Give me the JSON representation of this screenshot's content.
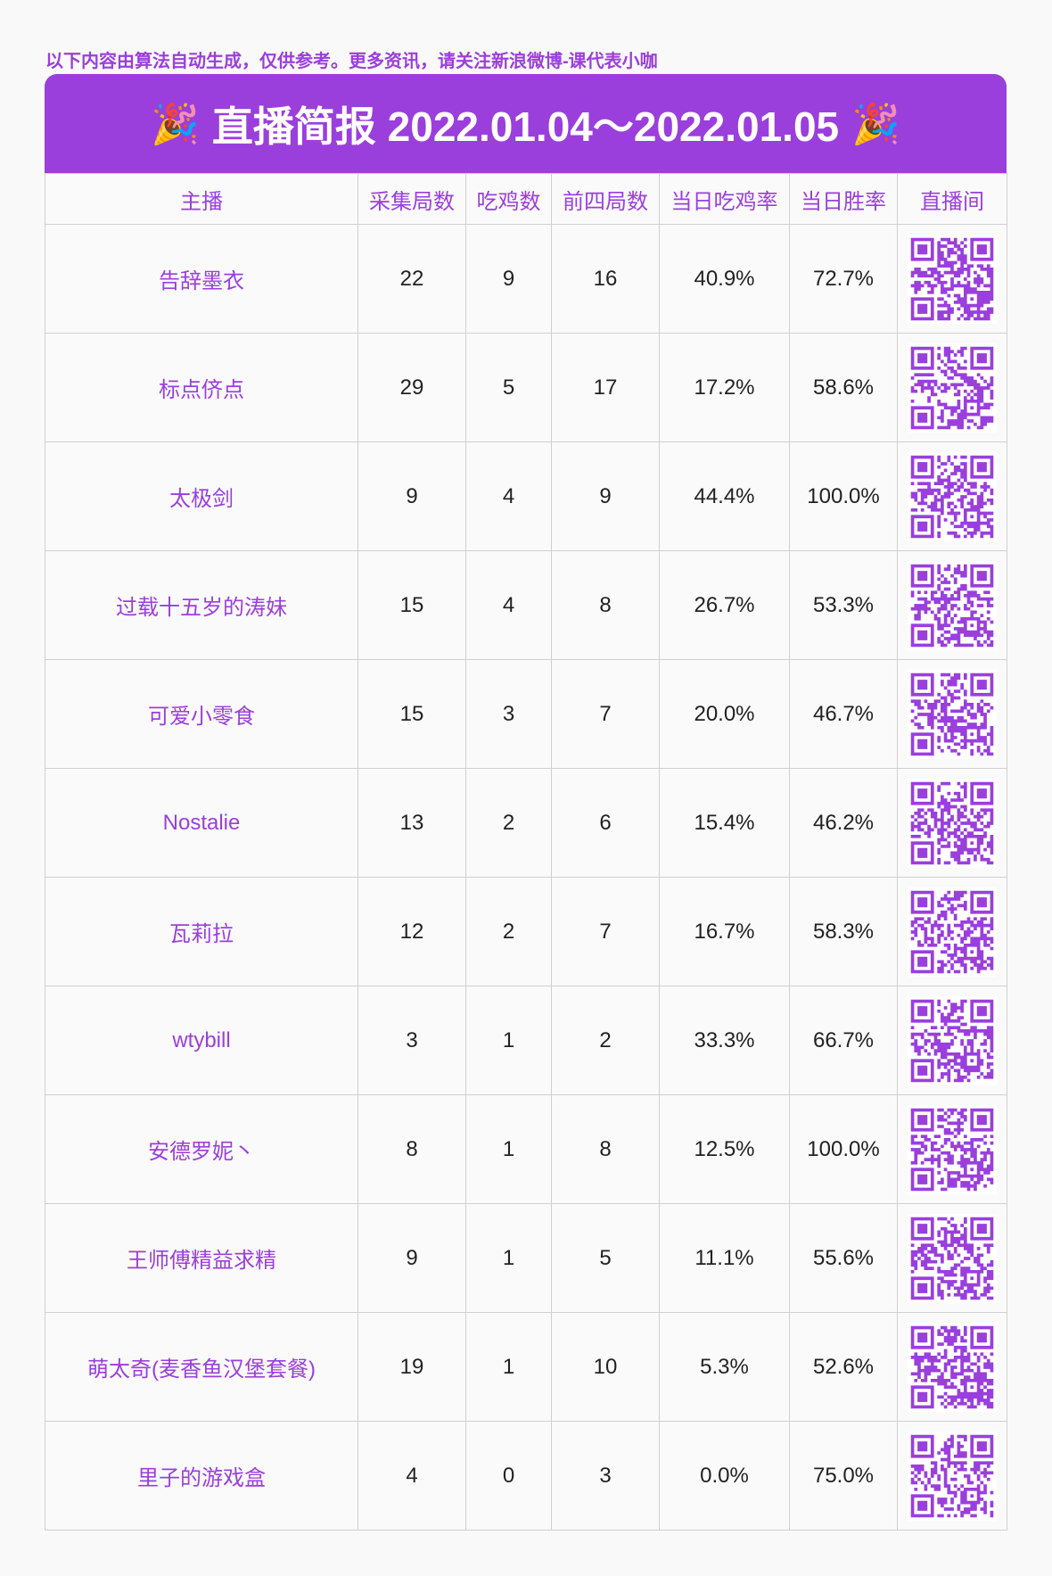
{
  "notice": "以下内容由算法自动生成，仅供参考。更多资讯，请关注新浪微博-课代表小咖",
  "banner": {
    "title": "直播简报 2022.01.04～2022.01.05",
    "left_icon": "party-popper-icon",
    "right_icon": "party-popper-icon",
    "emoji": "🎉"
  },
  "accent_color": "#9a3fdc",
  "columns": [
    "主播",
    "采集局数",
    "吃鸡数",
    "前四局数",
    "当日吃鸡率",
    "当日胜率",
    "直播间"
  ],
  "rows": [
    {
      "name": "告辞墨衣",
      "games": "22",
      "wins": "9",
      "top4": "16",
      "win_rate": "40.9%",
      "day_rate": "72.7%"
    },
    {
      "name": "标点侪点",
      "games": "29",
      "wins": "5",
      "top4": "17",
      "win_rate": "17.2%",
      "day_rate": "58.6%"
    },
    {
      "name": "太极剑",
      "games": "9",
      "wins": "4",
      "top4": "9",
      "win_rate": "44.4%",
      "day_rate": "100.0%"
    },
    {
      "name": "过载十五岁的涛妹",
      "games": "15",
      "wins": "4",
      "top4": "8",
      "win_rate": "26.7%",
      "day_rate": "53.3%"
    },
    {
      "name": "可爱小零食",
      "games": "15",
      "wins": "3",
      "top4": "7",
      "win_rate": "20.0%",
      "day_rate": "46.7%"
    },
    {
      "name": "Nostalie",
      "games": "13",
      "wins": "2",
      "top4": "6",
      "win_rate": "15.4%",
      "day_rate": "46.2%"
    },
    {
      "name": "瓦莉拉",
      "games": "12",
      "wins": "2",
      "top4": "7",
      "win_rate": "16.7%",
      "day_rate": "58.3%"
    },
    {
      "name": "wtybill",
      "games": "3",
      "wins": "1",
      "top4": "2",
      "win_rate": "33.3%",
      "day_rate": "66.7%"
    },
    {
      "name": "安德罗妮丶",
      "games": "8",
      "wins": "1",
      "top4": "8",
      "win_rate": "12.5%",
      "day_rate": "100.0%"
    },
    {
      "name": "王师傅精益求精",
      "games": "9",
      "wins": "1",
      "top4": "5",
      "win_rate": "11.1%",
      "day_rate": "55.6%"
    },
    {
      "name": "萌太奇(麦香鱼汉堡套餐)",
      "games": "19",
      "wins": "1",
      "top4": "10",
      "win_rate": "5.3%",
      "day_rate": "52.6%"
    },
    {
      "name": "里子的游戏盒",
      "games": "4",
      "wins": "0",
      "top4": "3",
      "win_rate": "0.0%",
      "day_rate": "75.0%"
    }
  ]
}
